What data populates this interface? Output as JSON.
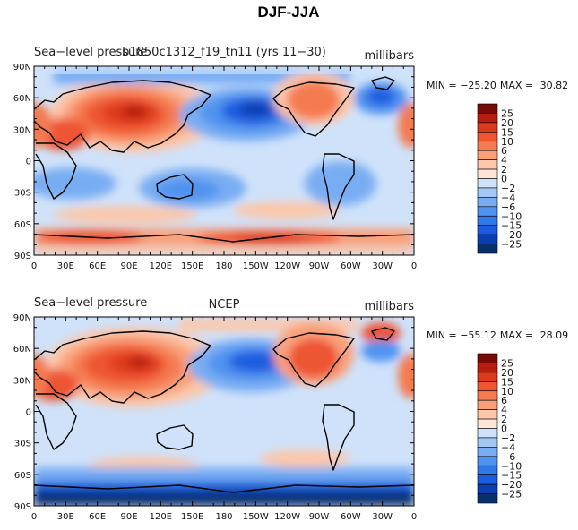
{
  "title": "DJF-JJA",
  "colors": [
    "#08306b",
    "#0a3fb3",
    "#1a5de0",
    "#2f7ae8",
    "#4f93f0",
    "#79adf3",
    "#a4c8f6",
    "#cfe2fa",
    "#fde6d8",
    "#fcc7ab",
    "#f9a07a",
    "#f47a4f",
    "#ee5530",
    "#dc3a1c",
    "#b81c0e",
    "#7a0a05"
  ],
  "colorbar_levels": [
    "25",
    "20",
    "15",
    "10",
    "6",
    "4",
    "2",
    "0",
    "−2",
    "−4",
    "−6",
    "−10",
    "−15",
    "−20",
    "−25"
  ],
  "x_ticks": [
    "0",
    "30E",
    "60E",
    "90E",
    "120E",
    "150E",
    "180",
    "150W",
    "120W",
    "90W",
    "60W",
    "30W",
    "0"
  ],
  "y_ticks": [
    "90N",
    "60N",
    "30N",
    "0",
    "30S",
    "60S",
    "90S"
  ],
  "panels": [
    {
      "left_label": "Sea−level pressure",
      "center_label": "b1850c1312_f19_tn11 (yrs 11−30)",
      "units": "millibars",
      "min_label": "MIN = ",
      "min_value": "−25.20",
      "max_label": "MAX = ",
      "max_value": "30.82"
    },
    {
      "left_label": "Sea−level pressure",
      "center_label": "NCEP",
      "units": "millibars",
      "min_label": "MIN = ",
      "min_value": "−55.12",
      "max_label": "MAX = ",
      "max_value": "28.09"
    }
  ]
}
